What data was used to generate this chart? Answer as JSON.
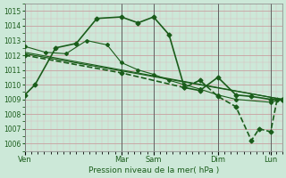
{
  "background_color": "#cce8d8",
  "grid_color_major": "#c8a0a0",
  "grid_color_minor": "#ddbcbc",
  "line_color": "#1a5c1a",
  "xlabel": "Pression niveau de la mer( hPa )",
  "ylim": [
    1005.5,
    1015.5
  ],
  "xlim": [
    0,
    1.0
  ],
  "day_labels": [
    "Ven",
    "Mar",
    "Sam",
    "Dim",
    "Lun"
  ],
  "day_positions": [
    0.0,
    0.375,
    0.5,
    0.75,
    0.955
  ],
  "lines": [
    {
      "x": [
        0.0,
        0.04,
        0.12,
        0.2,
        0.28,
        0.375,
        0.44,
        0.5,
        0.56,
        0.62,
        0.68,
        0.75,
        0.82,
        0.88,
        0.955,
        1.0
      ],
      "y": [
        1009.3,
        1010.0,
        1012.5,
        1012.8,
        1014.5,
        1014.6,
        1014.2,
        1014.6,
        1013.4,
        1009.8,
        1009.6,
        1010.5,
        1009.3,
        1009.2,
        1009.0,
        1009.0
      ],
      "marker": "D",
      "markersize": 2.5,
      "linewidth": 1.2,
      "dashed": false
    },
    {
      "x": [
        0.0,
        0.08,
        0.16,
        0.24,
        0.32,
        0.375,
        0.44,
        0.5,
        0.56,
        0.62,
        0.68,
        0.75,
        0.82,
        0.955,
        1.0
      ],
      "y": [
        1012.6,
        1012.2,
        1012.1,
        1013.0,
        1012.7,
        1011.5,
        1011.0,
        1010.7,
        1010.3,
        1010.0,
        1009.7,
        1009.3,
        1009.0,
        1008.8,
        1009.0
      ],
      "marker": "D",
      "markersize": 2.0,
      "linewidth": 0.8,
      "dashed": false
    },
    {
      "x": [
        0.0,
        1.0
      ],
      "y": [
        1012.1,
        1009.0
      ],
      "marker": "None",
      "markersize": 0,
      "linewidth": 0.9,
      "dashed": false
    },
    {
      "x": [
        0.0,
        1.0
      ],
      "y": [
        1012.2,
        1009.0
      ],
      "marker": "None",
      "markersize": 0,
      "linewidth": 0.8,
      "dashed": false
    },
    {
      "x": [
        0.0,
        0.375,
        0.62,
        0.68,
        0.75,
        0.82,
        0.88,
        0.91,
        0.955,
        0.98,
        1.0
      ],
      "y": [
        1012.0,
        1010.8,
        1009.8,
        1010.3,
        1009.2,
        1008.5,
        1006.2,
        1007.0,
        1006.8,
        1009.0,
        1009.0
      ],
      "marker": "D",
      "markersize": 2.5,
      "linewidth": 1.2,
      "dashed": true
    }
  ],
  "vline_positions": [
    0.0,
    0.375,
    0.5,
    0.75,
    0.955
  ],
  "vline_color": "#606060"
}
